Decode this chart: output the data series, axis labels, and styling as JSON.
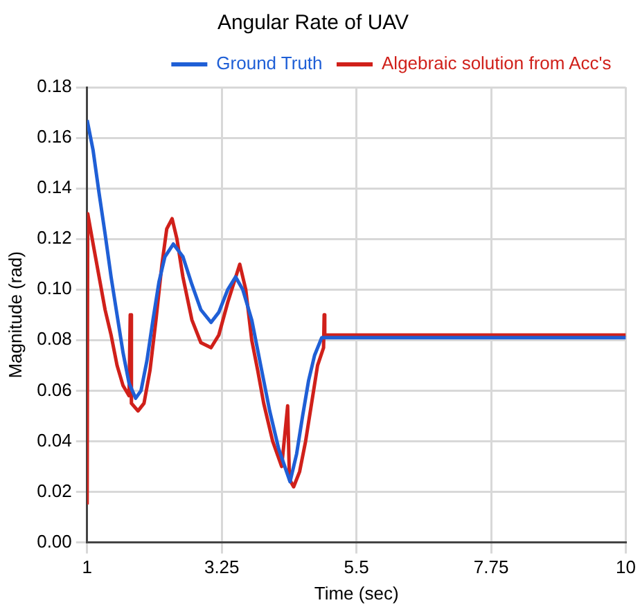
{
  "chart_data": {
    "type": "line",
    "title": "Angular Rate of UAV",
    "xlabel": "Time (sec)",
    "ylabel": "Magnitude (rad)",
    "xlim": [
      1,
      10
    ],
    "xticks": [
      1,
      3.25,
      5.5,
      7.75,
      10
    ],
    "ylim": [
      0,
      0.18
    ],
    "yticks": [
      {
        "value": 0,
        "label": "0.00"
      },
      0.02,
      0.04,
      0.06,
      0.08,
      {
        "value": 0.1,
        "label": "0.10"
      },
      0.12,
      0.14,
      0.16,
      0.18
    ],
    "grid": true,
    "legend": "top right",
    "marker": "none",
    "line_style": "solid",
    "series": [
      {
        "name": "Ground Truth",
        "color": "#1f5fd6",
        "x": [
          1,
          1.1,
          1.2,
          1.3,
          1.4,
          1.5,
          1.6,
          1.7,
          1.81,
          1.9,
          2.0,
          2.1,
          2.2,
          2.3,
          2.44,
          2.6,
          2.75,
          2.9,
          3.07,
          3.2,
          3.35,
          3.48,
          3.6,
          3.75,
          3.9,
          4.05,
          4.2,
          4.39,
          4.5,
          4.6,
          4.7,
          4.8,
          4.92,
          10
        ],
        "values": [
          0.167,
          0.155,
          0.138,
          0.122,
          0.105,
          0.09,
          0.075,
          0.063,
          0.057,
          0.06,
          0.072,
          0.088,
          0.103,
          0.113,
          0.118,
          0.113,
          0.102,
          0.092,
          0.087,
          0.091,
          0.1,
          0.105,
          0.1,
          0.088,
          0.07,
          0.052,
          0.037,
          0.024,
          0.035,
          0.05,
          0.064,
          0.074,
          0.081,
          0.081
        ]
      },
      {
        "name": "Algebraic solution from Acc's",
        "color": "#d0201a",
        "x": [
          1,
          1.01,
          1.1,
          1.2,
          1.3,
          1.4,
          1.5,
          1.6,
          1.7,
          1.72,
          1.74,
          1.85,
          1.95,
          2.05,
          2.15,
          2.25,
          2.33,
          2.42,
          2.5,
          2.6,
          2.75,
          2.9,
          3.07,
          3.2,
          3.35,
          3.55,
          3.65,
          3.75,
          3.85,
          3.95,
          4.1,
          4.25,
          4.35,
          4.38,
          4.45,
          4.55,
          4.65,
          4.75,
          4.85,
          4.95,
          4.96,
          4.97,
          10
        ],
        "values": [
          0.015,
          0.13,
          0.118,
          0.105,
          0.092,
          0.082,
          0.07,
          0.062,
          0.058,
          0.09,
          0.055,
          0.052,
          0.055,
          0.068,
          0.088,
          0.11,
          0.124,
          0.128,
          0.12,
          0.105,
          0.088,
          0.079,
          0.077,
          0.082,
          0.095,
          0.11,
          0.1,
          0.08,
          0.068,
          0.055,
          0.04,
          0.03,
          0.054,
          0.025,
          0.022,
          0.028,
          0.04,
          0.055,
          0.07,
          0.077,
          0.09,
          0.082,
          0.082
        ]
      }
    ]
  }
}
